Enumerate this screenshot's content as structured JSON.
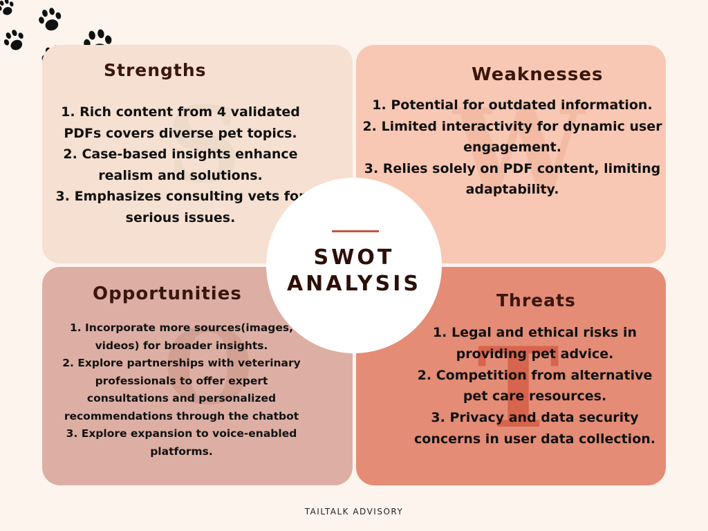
{
  "center": {
    "line1": "SWOT",
    "line2": "ANALYSIS"
  },
  "quadrants": {
    "strengths": {
      "title": "Strengths",
      "watermark": "S",
      "items": [
        "1. Rich content from 4 validated PDFs covers diverse pet topics.",
        "2. Case-based insights enhance realism and solutions.",
        "3. Emphasizes consulting vets for serious issues."
      ]
    },
    "weaknesses": {
      "title": "Weaknesses",
      "watermark": "W",
      "items": [
        "1. Potential for outdated information.",
        "2. Limited interactivity for dynamic user engagement.",
        "3. Relies solely on PDF content, limiting adaptability."
      ]
    },
    "opportunities": {
      "title": "Opportunities",
      "watermark": "O",
      "items": [
        "1. Incorporate more sources(images, videos) for broader insights.",
        "2. Explore partnerships with veterinary professionals to offer expert consultations and personalized recommendations through the chatbot",
        "3. Explore expansion to voice-enabled platforms."
      ]
    },
    "threats": {
      "title": "Threats",
      "watermark": "T",
      "items": [
        "1. Legal and ethical risks in providing pet advice.",
        "2. Competition from alternative pet care resources.",
        "3. Privacy and data security concerns in user data collection."
      ]
    }
  },
  "footer": "TAILTALK ADVISORY",
  "decor": {
    "icon": "paw-print-icon",
    "count": 5,
    "color": "#111111"
  },
  "colors": {
    "background": "#fdf4ee",
    "strengths": "#f6e0d1",
    "weaknesses": "#f8c8b4",
    "opportunities": "#ddafa4",
    "threats": "#e48c76",
    "heading": "#3a160d",
    "accent_line": "#c4553f"
  }
}
